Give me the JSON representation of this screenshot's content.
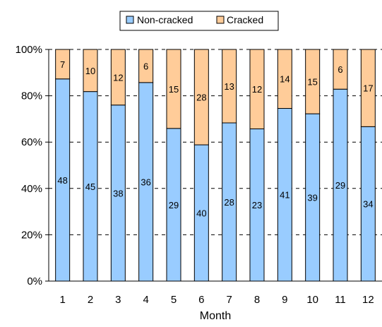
{
  "chart_data": {
    "type": "bar",
    "stacked": "percent",
    "title": "",
    "xlabel": "Month",
    "ylabel": "",
    "ylim": [
      0,
      100
    ],
    "y_ticks": [
      "0%",
      "20%",
      "40%",
      "60%",
      "80%",
      "100%"
    ],
    "grid": "dashed horizontal",
    "legend_position": "top",
    "categories": [
      "1",
      "2",
      "3",
      "4",
      "5",
      "6",
      "7",
      "8",
      "9",
      "10",
      "11",
      "12"
    ],
    "series": [
      {
        "name": "Non-cracked",
        "color": "#99ccff",
        "values": [
          48,
          45,
          38,
          36,
          29,
          40,
          28,
          23,
          41,
          39,
          29,
          34
        ]
      },
      {
        "name": "Cracked",
        "color": "#ffcc99",
        "values": [
          7,
          10,
          12,
          6,
          15,
          28,
          13,
          12,
          14,
          15,
          6,
          17
        ]
      }
    ]
  }
}
